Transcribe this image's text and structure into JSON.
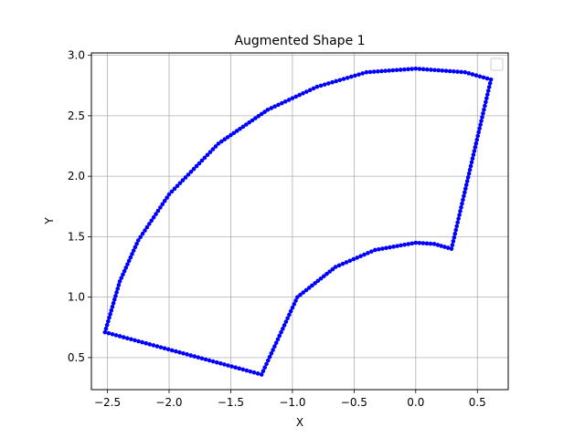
{
  "chart_data": {
    "type": "scatter",
    "title": "Augmented Shape 1",
    "xlabel": "X",
    "ylabel": "Y",
    "xlim": [
      -2.63,
      0.75
    ],
    "ylim": [
      0.235,
      3.02
    ],
    "xticks": [
      -2.5,
      -2.0,
      -1.5,
      -1.0,
      -0.5,
      0.0,
      0.5
    ],
    "xtick_labels": [
      "−2.5",
      "−2.0",
      "−1.5",
      "−1.0",
      "−0.5",
      "0.0",
      "0.5"
    ],
    "yticks": [
      0.5,
      1.0,
      1.5,
      2.0,
      2.5,
      3.0
    ],
    "ytick_labels": [
      "0.5",
      "1.0",
      "1.5",
      "2.0",
      "2.5",
      "3.0"
    ],
    "grid": true,
    "legend": {
      "placement": "top-right",
      "entries": []
    },
    "marker_color": "#0000ff",
    "outline_vertices": [
      {
        "x": -2.52,
        "y": 0.71
      },
      {
        "x": -1.25,
        "y": 0.36
      },
      {
        "x": -0.96,
        "y": 1.0
      },
      {
        "x": -0.65,
        "y": 1.25
      },
      {
        "x": -0.33,
        "y": 1.39
      },
      {
        "x": 0.0,
        "y": 1.45
      },
      {
        "x": 0.15,
        "y": 1.44
      },
      {
        "x": 0.29,
        "y": 1.4
      },
      {
        "x": 0.61,
        "y": 2.8
      },
      {
        "x": 0.4,
        "y": 2.86
      },
      {
        "x": 0.0,
        "y": 2.89
      },
      {
        "x": -0.4,
        "y": 2.86
      },
      {
        "x": -0.8,
        "y": 2.74
      },
      {
        "x": -1.2,
        "y": 2.55
      },
      {
        "x": -1.6,
        "y": 2.27
      },
      {
        "x": -2.0,
        "y": 1.85
      },
      {
        "x": -2.25,
        "y": 1.47
      },
      {
        "x": -2.4,
        "y": 1.13
      },
      {
        "x": -2.52,
        "y": 0.71
      }
    ]
  }
}
